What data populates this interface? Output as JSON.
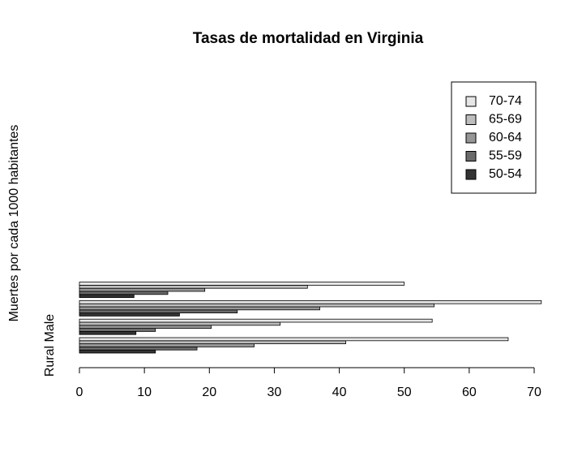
{
  "chart_data": {
    "type": "bar",
    "orientation": "horizontal",
    "title": "Tasas de mortalidad en Virginia",
    "y_label": "Muertes por cada 1000 habitantes",
    "categories": [
      "Rural Male",
      null,
      null,
      null
    ],
    "series": [
      {
        "name": "50-54",
        "color": "#333333",
        "values": [
          11.7,
          8.7,
          15.4,
          8.4
        ]
      },
      {
        "name": "55-59",
        "color": "#6b6b6b",
        "values": [
          18.1,
          11.7,
          24.3,
          13.6
        ]
      },
      {
        "name": "60-64",
        "color": "#969696",
        "values": [
          26.9,
          20.3,
          37.0,
          19.3
        ]
      },
      {
        "name": "65-69",
        "color": "#bdbdbd",
        "values": [
          41.0,
          30.9,
          54.6,
          35.1
        ]
      },
      {
        "name": "70-74",
        "color": "#e6e6e6",
        "values": [
          66.0,
          54.3,
          71.1,
          50.0
        ]
      }
    ],
    "xlim": [
      0,
      70
    ],
    "xticks": [
      0,
      10,
      20,
      30,
      40,
      50,
      60,
      70
    ],
    "legend": "top-right"
  }
}
